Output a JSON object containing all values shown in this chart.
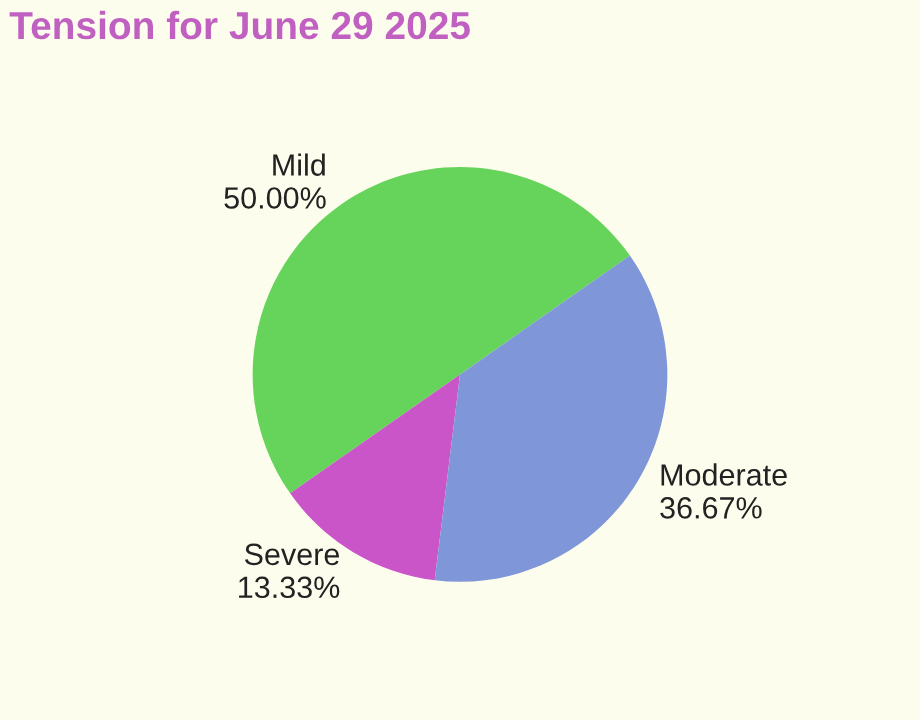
{
  "chart_data": {
    "type": "pie",
    "title": "Tension for June 29 2025",
    "categories": [
      "Mild",
      "Severe",
      "Moderate"
    ],
    "values": [
      50.0,
      13.33,
      36.67
    ],
    "value_labels": [
      "50.00%",
      "13.33%",
      "36.67%"
    ],
    "colors": [
      "#66d45a",
      "#c955c8",
      "#7f96d8"
    ]
  }
}
